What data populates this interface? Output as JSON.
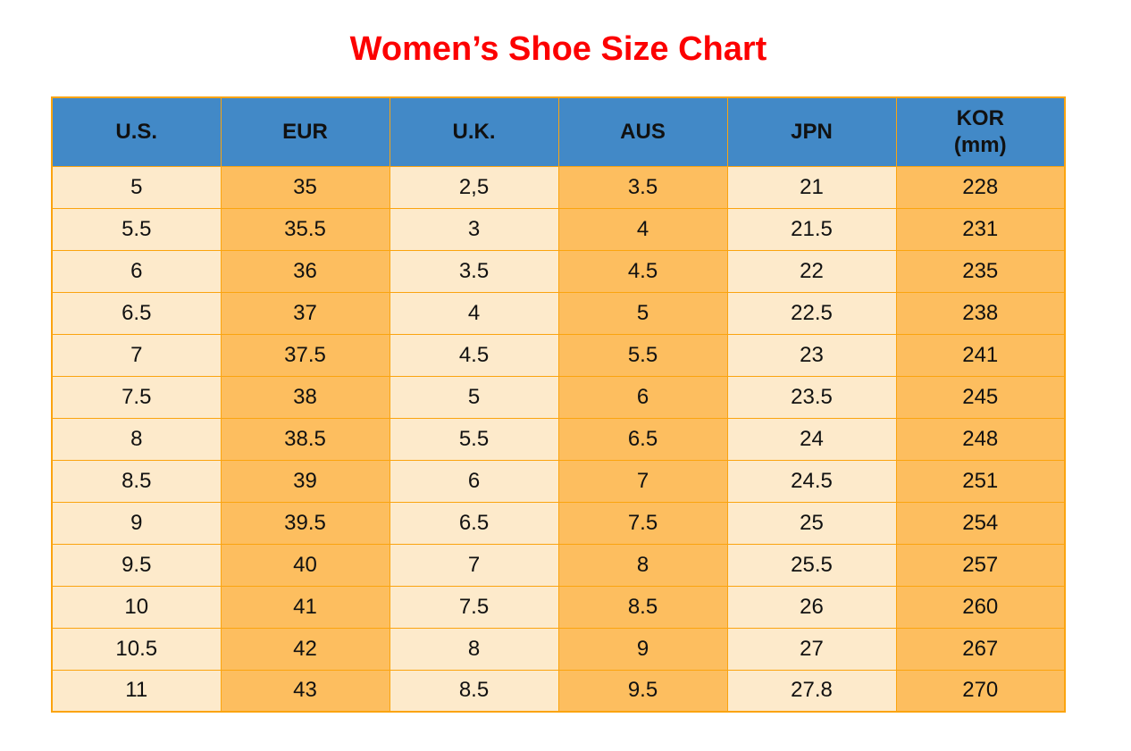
{
  "title": {
    "text": "Women’s Shoe Size Chart"
  },
  "colors": {
    "title_red": "#FC0000",
    "header_blue": "#4289C7",
    "column_cream": "#FDEACB",
    "column_orange": "#FDBE5F",
    "border_orange": "#FBA40F",
    "cell_text": "#111111",
    "page_background": "#FFFFFF"
  },
  "table": {
    "headers": [
      {
        "label": "U.S.",
        "sub": ""
      },
      {
        "label": "EUR",
        "sub": ""
      },
      {
        "label": "U.K.",
        "sub": ""
      },
      {
        "label": "AUS",
        "sub": ""
      },
      {
        "label": "JPN",
        "sub": ""
      },
      {
        "label": "KOR",
        "sub": "(mm)"
      }
    ]
  },
  "chart_data": {
    "type": "table",
    "title": "Women’s Shoe Size Chart",
    "columns": [
      "U.S.",
      "EUR",
      "U.K.",
      "AUS",
      "JPN",
      "KOR (mm)"
    ],
    "rows": [
      [
        "5",
        "35",
        "2,5",
        "3.5",
        "21",
        "228"
      ],
      [
        "5.5",
        "35.5",
        "3",
        "4",
        "21.5",
        "231"
      ],
      [
        "6",
        "36",
        "3.5",
        "4.5",
        "22",
        "235"
      ],
      [
        "6.5",
        "37",
        "4",
        "5",
        "22.5",
        "238"
      ],
      [
        "7",
        "37.5",
        "4.5",
        "5.5",
        "23",
        "241"
      ],
      [
        "7.5",
        "38",
        "5",
        "6",
        "23.5",
        "245"
      ],
      [
        "8",
        "38.5",
        "5.5",
        "6.5",
        "24",
        "248"
      ],
      [
        "8.5",
        "39",
        "6",
        "7",
        "24.5",
        "251"
      ],
      [
        "9",
        "39.5",
        "6.5",
        "7.5",
        "25",
        "254"
      ],
      [
        "9.5",
        "40",
        "7",
        "8",
        "25.5",
        "257"
      ],
      [
        "10",
        "41",
        "7.5",
        "8.5",
        "26",
        "260"
      ],
      [
        "10.5",
        "42",
        "8",
        "9",
        "27",
        "267"
      ],
      [
        "11",
        "43",
        "8.5",
        "9.5",
        "27.8",
        "270"
      ]
    ]
  }
}
